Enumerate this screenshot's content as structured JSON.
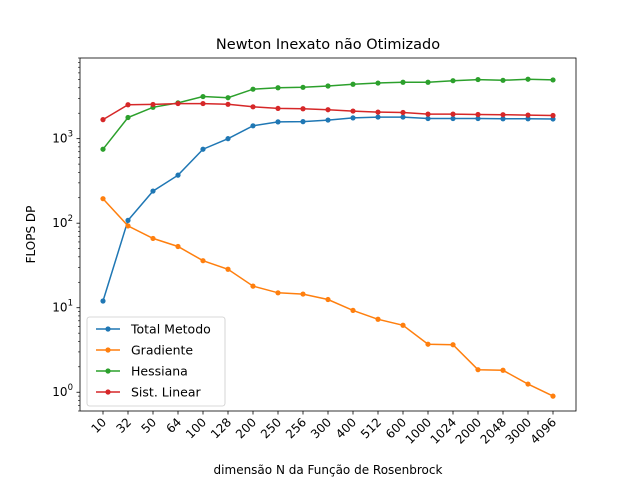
{
  "chart_data": {
    "type": "line",
    "title": "Newton Inexato não Otimizado",
    "xlabel": "dimensão N da Função de Rosenbrock",
    "ylabel": "FLOPS DP",
    "yscale": "log",
    "ylim": [
      0.6,
      9000
    ],
    "y_ticks": [
      {
        "value": 1,
        "base": "10",
        "exp": "0"
      },
      {
        "value": 10,
        "base": "10",
        "exp": "1"
      },
      {
        "value": 100,
        "base": "10",
        "exp": "2"
      },
      {
        "value": 1000,
        "base": "10",
        "exp": "3"
      }
    ],
    "categories": [
      "10",
      "32",
      "50",
      "64",
      "100",
      "128",
      "200",
      "250",
      "256",
      "300",
      "400",
      "512",
      "600",
      "1000",
      "1024",
      "2000",
      "2048",
      "3000",
      "4096"
    ],
    "grid": false,
    "legend_position": "lower-left",
    "series": [
      {
        "name": "Total Metodo",
        "color": "#1f77b4",
        "values": [
          12,
          108,
          240,
          370,
          750,
          1000,
          1420,
          1580,
          1590,
          1660,
          1760,
          1800,
          1800,
          1730,
          1730,
          1730,
          1720,
          1720,
          1710
        ]
      },
      {
        "name": "Gradiente",
        "color": "#ff7f0e",
        "values": [
          195,
          93,
          66,
          53,
          36,
          28.5,
          18,
          15,
          14.5,
          12.5,
          9.3,
          7.3,
          6.2,
          3.7,
          3.65,
          1.85,
          1.82,
          1.25,
          0.9
        ]
      },
      {
        "name": "Hessiana",
        "color": "#2ca02c",
        "values": [
          750,
          1780,
          2350,
          2650,
          3150,
          3050,
          3850,
          4000,
          4050,
          4200,
          4400,
          4550,
          4650,
          4650,
          4850,
          5000,
          4900,
          5050,
          4950
        ]
      },
      {
        "name": "Sist. Linear",
        "color": "#d62728",
        "values": [
          1680,
          2520,
          2540,
          2600,
          2600,
          2550,
          2380,
          2280,
          2260,
          2200,
          2120,
          2060,
          2040,
          1950,
          1950,
          1930,
          1920,
          1900,
          1880
        ]
      }
    ]
  }
}
